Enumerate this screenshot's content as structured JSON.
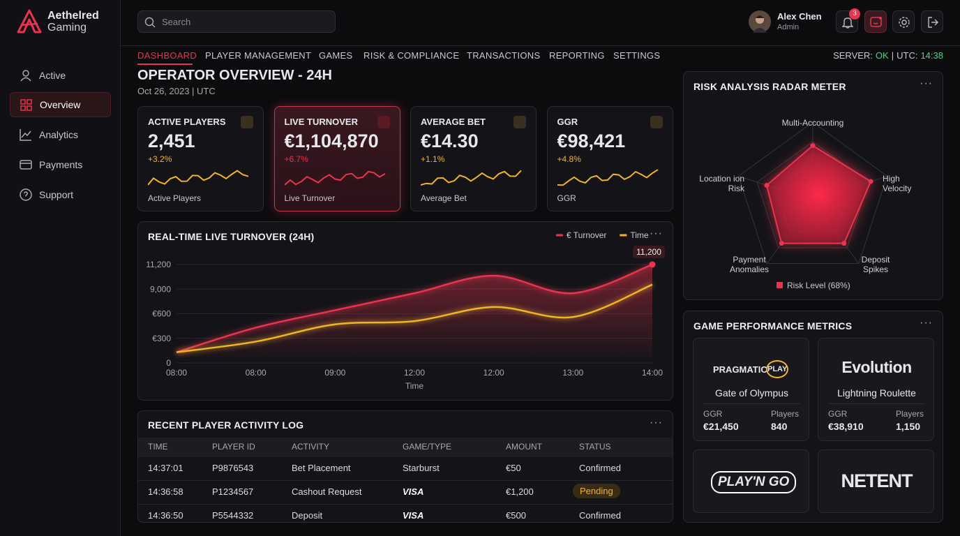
{
  "brand": {
    "name": "Aethelred",
    "sub": "Gaming"
  },
  "sidebar": [
    "Active",
    "Overview",
    "Analytics",
    "Payments",
    "Support"
  ],
  "search": "Search",
  "user": {
    "name": "Alex Chen",
    "role": "Admin",
    "notifications": "3"
  },
  "nav": [
    "DASHBOARD",
    "PLAYER MANAGEMENT",
    "GAMES",
    "RISK & COMPLIANCE",
    "TRANSACTIONS",
    "REPORTING",
    "SETTINGS"
  ],
  "status": {
    "server": "SERVER:",
    "server_value": "OK",
    "sep": "|",
    "utc": "UTC:",
    "utc_value": "14:38"
  },
  "page": {
    "title": "OPERATOR OVERVIEW - 24H",
    "date": "Oct 26, 2023 | UTC"
  },
  "kpis": [
    {
      "title": "ACTIVE PLAYERS",
      "value": "2,451",
      "change": "+3.2%",
      "label": "Active Players"
    },
    {
      "title": "LIVE TURNOVER",
      "value": "€1,104,870",
      "change": "+6.7%",
      "label": "Live Turnover"
    },
    {
      "title": "AVERAGE BET",
      "value": "€14.30",
      "change": "+1.1%",
      "label": "Average Bet"
    },
    {
      "title": "GGR",
      "value": "€98,421",
      "change": "+4.8%",
      "label": "GGR"
    }
  ],
  "turnover_chart": {
    "type": "line",
    "title": "REAL-TIME LIVE TURNOVER (24H)",
    "x_label": "Time",
    "categories": [
      "08:00",
      "08:00",
      "09:00",
      "12:00",
      "12:00",
      "13:00",
      "14:00"
    ],
    "series": [
      {
        "name": "€ Turnover",
        "color": "#e8344e",
        "values": [
          130,
          430,
          1800,
          7600,
          10200,
          7600,
          11200
        ],
        "value_labels": [
          null,
          null,
          null,
          null,
          null,
          null,
          "11,200"
        ]
      },
      {
        "name": "Time",
        "color": "#f0b429",
        "values": [
          130,
          260,
          470,
          510,
          2900,
          560,
          9400
        ]
      }
    ],
    "ylim": [
      0,
      11200
    ],
    "yticks": [
      0,
      {
        "value": 300,
        "label": "€300"
      },
      {
        "value": 600,
        "label": "€600"
      },
      {
        "value": 9000,
        "label": "9,000"
      },
      {
        "value": 11200,
        "label": "11,200"
      }
    ]
  },
  "radar": {
    "type": "radar",
    "title": "RISK ANALYSIS RADAR METER",
    "axes": [
      "Multi-Accounting",
      "High Velocity",
      "Deposit Spikes",
      "Payment Anomalies",
      "Location ion Risk"
    ],
    "values": [
      70,
      78,
      68,
      68,
      62
    ],
    "max": 100,
    "legend": "Risk Level (68%)",
    "color": "#e8344e"
  },
  "activity_log": {
    "title": "RECENT PLAYER ACTIVITY LOG",
    "columns": [
      "TIME",
      "PLAYER ID",
      "ACTIVITY",
      "GAME/TYPE",
      "AMOUNT",
      "STATUS"
    ],
    "rows": [
      [
        "14:37:01",
        "P9876543",
        "Bet Placement",
        "Starburst",
        "€50",
        "Confirmed"
      ],
      [
        "14:36:58",
        "P1234567",
        "Cashout Request",
        "VISA",
        "€1,200",
        "Pending"
      ],
      [
        "14:36:50",
        "P5544332",
        "Deposit",
        "VISA",
        "€500",
        "Confirmed"
      ]
    ]
  },
  "games": {
    "title": "GAME PERFORMANCE METRICS",
    "cards": [
      {
        "provider": "PRAGMATIC",
        "provider_2": "PLAY",
        "game": "Gate of Olympus",
        "ggr_label": "GGR",
        "ggr": "€21,450",
        "players_label": "Players",
        "players": "840"
      },
      {
        "provider": "Evolution",
        "game": "Lightning Roulette",
        "ggr_label": "GGR",
        "ggr": "€38,910",
        "players_label": "Players",
        "players": "1,150"
      }
    ],
    "logos": [
      "PLAY'N GO",
      "NETENT"
    ]
  }
}
